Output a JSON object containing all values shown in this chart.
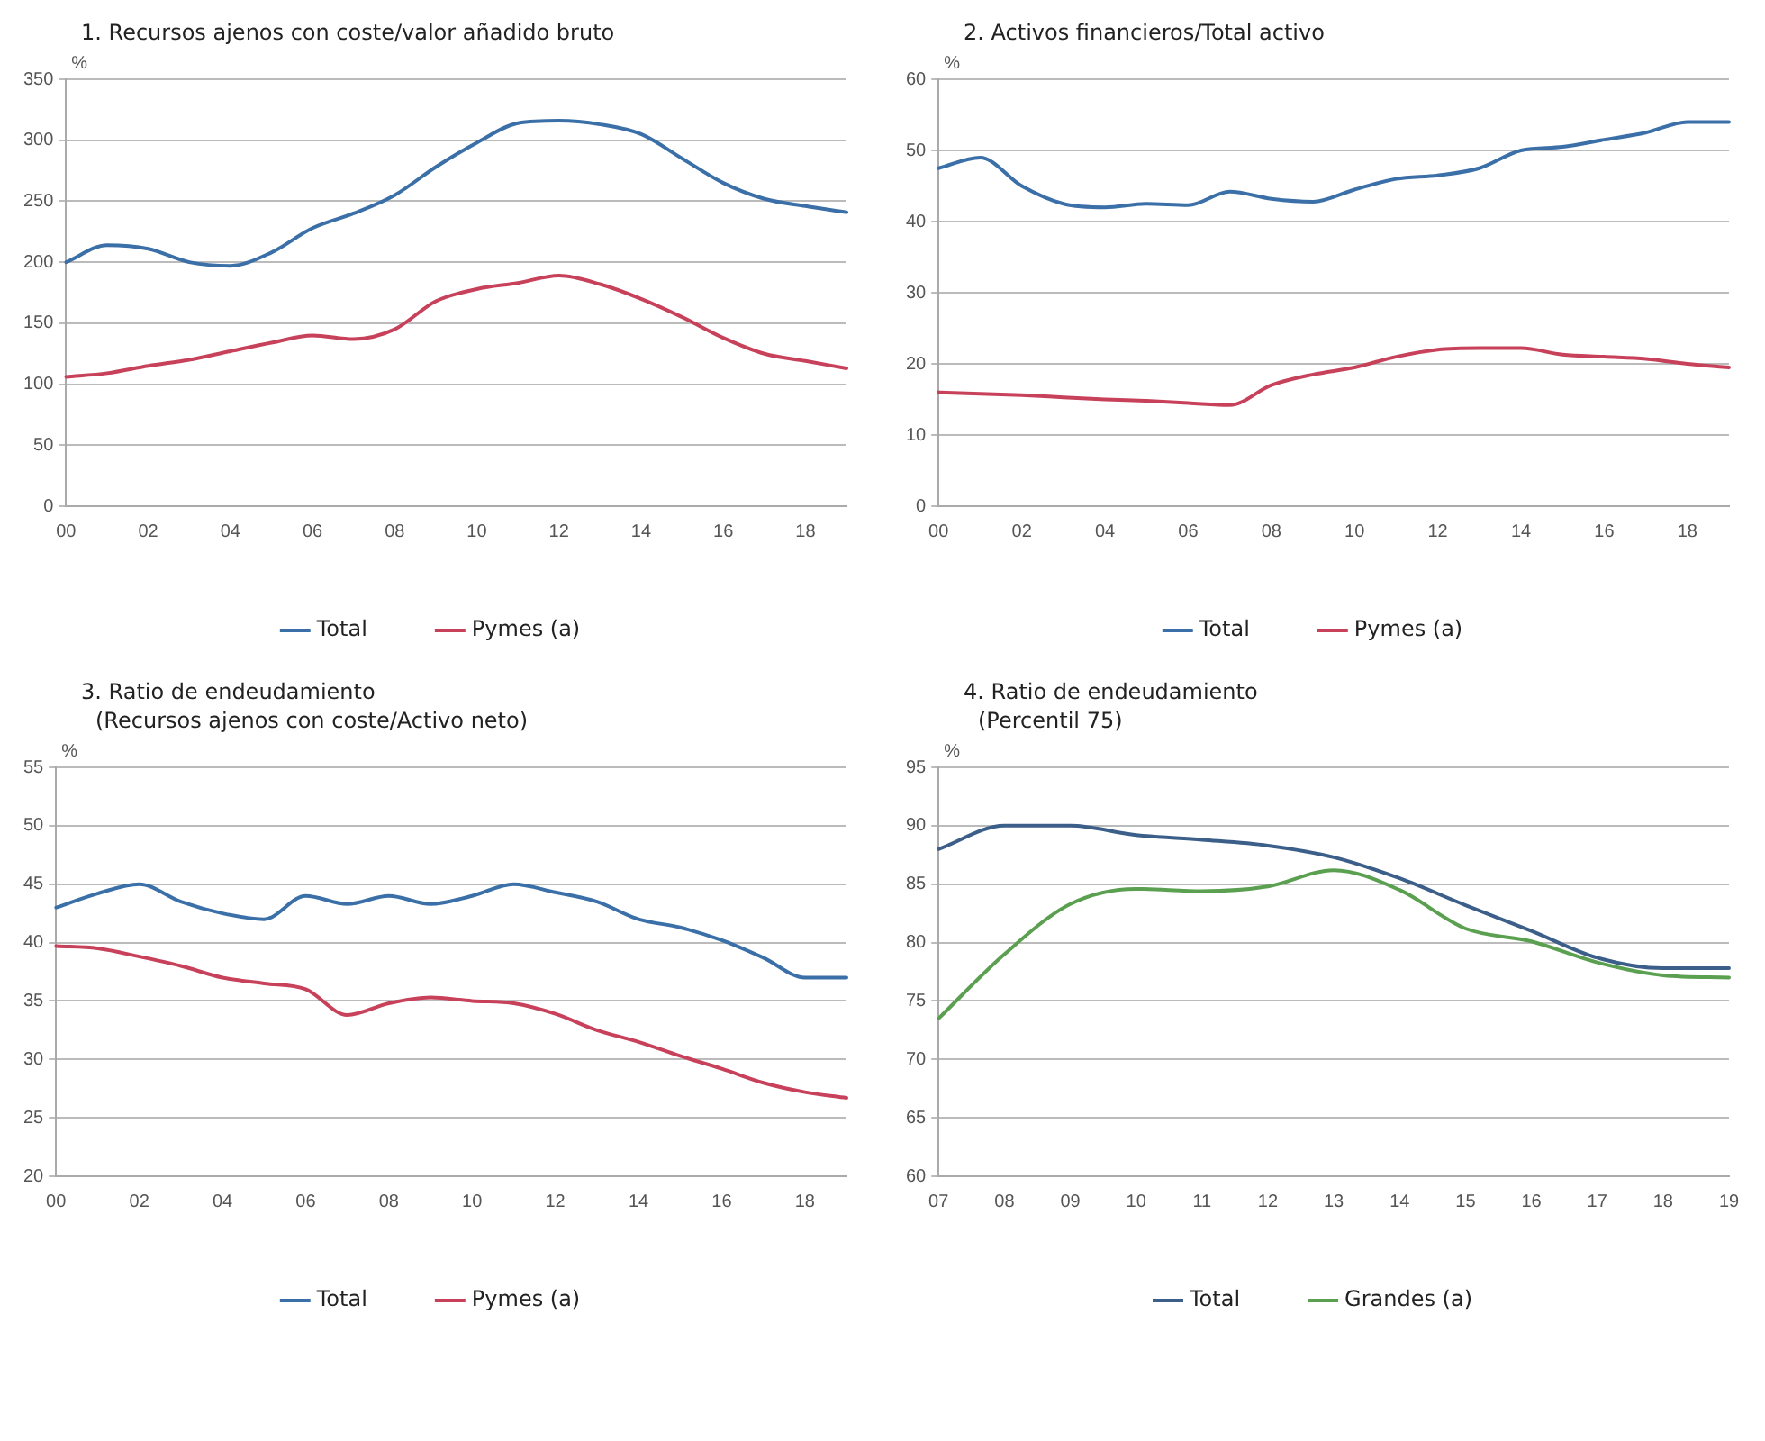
{
  "chart_data": [
    {
      "type": "line",
      "title": "1. Recursos ajenos con coste/valor añadido bruto",
      "ylabel": "%",
      "categories": [
        "00",
        null,
        "02",
        null,
        "04",
        null,
        "06",
        null,
        "08",
        null,
        "10",
        null,
        "12",
        null,
        "14",
        null,
        "16",
        null,
        "18",
        null
      ],
      "ylim": [
        0,
        350
      ],
      "yticks": [
        0,
        50,
        100,
        150,
        200,
        250,
        300,
        350
      ],
      "grid": "y",
      "legend": "bottom",
      "marker": "none",
      "line_style": "solid",
      "series": [
        {
          "name": "Total",
          "color": "#3a6fa8",
          "values": [
            200,
            214,
            211,
            200,
            197,
            208,
            228,
            240,
            255,
            278,
            298,
            314,
            316,
            313,
            305,
            285,
            265,
            252,
            246,
            241
          ]
        },
        {
          "name": "Pymes (a)",
          "color": "#c8415a",
          "values": [
            106,
            109,
            115,
            120,
            127,
            134,
            140,
            137,
            145,
            168,
            178,
            183,
            189,
            182,
            170,
            155,
            138,
            125,
            119,
            113
          ]
        }
      ]
    },
    {
      "type": "line",
      "title": "2. Activos financieros/Total activo",
      "ylabel": "%",
      "categories": [
        "00",
        null,
        "02",
        null,
        "04",
        null,
        "06",
        null,
        "08",
        null,
        "10",
        null,
        "12",
        null,
        "14",
        null,
        "16",
        null,
        "18",
        null
      ],
      "ylim": [
        0,
        60
      ],
      "yticks": [
        0,
        10,
        20,
        30,
        40,
        50,
        60
      ],
      "grid": "y",
      "legend": "bottom",
      "marker": "none",
      "line_style": "solid",
      "series": [
        {
          "name": "Total",
          "color": "#3a6fa8",
          "values": [
            47.5,
            49,
            45,
            42.5,
            42,
            42.5,
            42.3,
            44.2,
            43.2,
            42.8,
            44.5,
            46,
            46.5,
            47.5,
            50,
            50.5,
            51.5,
            52.5,
            54,
            54
          ]
        },
        {
          "name": "Pymes (a)",
          "color": "#c8415a",
          "values": [
            16,
            15.8,
            15.6,
            15.3,
            15,
            14.8,
            14.5,
            14.2,
            17,
            18.5,
            19.5,
            21,
            22,
            22.2,
            22.2,
            21.3,
            21,
            20.7,
            20,
            19.5
          ]
        }
      ]
    },
    {
      "type": "line",
      "title": "3. Ratio de endeudamiento",
      "subtitle": "(Recursos ajenos con coste/Activo neto)",
      "ylabel": "%",
      "categories": [
        "00",
        null,
        "02",
        null,
        "04",
        null,
        "06",
        null,
        "08",
        null,
        "10",
        null,
        "12",
        null,
        "14",
        null,
        "16",
        null,
        "18",
        null
      ],
      "ylim": [
        20,
        55
      ],
      "yticks": [
        20,
        25,
        30,
        35,
        40,
        45,
        50,
        55
      ],
      "grid": "y",
      "legend": "bottom",
      "marker": "none",
      "line_style": "solid",
      "series": [
        {
          "name": "Total",
          "color": "#3a6fa8",
          "values": [
            43,
            44.2,
            45,
            43.5,
            42.5,
            42,
            44,
            43.3,
            44,
            43.3,
            44,
            45,
            44.3,
            43.5,
            42,
            41.3,
            40.2,
            38.7,
            37,
            37
          ]
        },
        {
          "name": "Pymes (a)",
          "color": "#c8415a",
          "values": [
            39.7,
            39.5,
            38.8,
            38,
            37,
            36.5,
            36,
            33.8,
            34.8,
            35.3,
            35,
            34.8,
            33.9,
            32.5,
            31.5,
            30.3,
            29.2,
            28,
            27.2,
            26.7
          ]
        }
      ]
    },
    {
      "type": "line",
      "title": "4. Ratio de endeudamiento",
      "subtitle": "(Percentil 75)",
      "ylabel": "%",
      "categories": [
        "07",
        "08",
        "09",
        "10",
        "11",
        "12",
        "13",
        "14",
        "15",
        "16",
        "17",
        "18",
        "19"
      ],
      "ylim": [
        60,
        95
      ],
      "yticks": [
        60,
        65,
        70,
        75,
        80,
        85,
        90,
        95
      ],
      "grid": "y",
      "legend": "bottom",
      "marker": "none",
      "line_style": "solid",
      "series": [
        {
          "name": "Total",
          "color": "#3c5f8a",
          "values": [
            88,
            90,
            90,
            89.2,
            88.8,
            88.3,
            87.3,
            85.5,
            83.2,
            81,
            78.7,
            77.8,
            77.8
          ]
        },
        {
          "name": "Grandes (a)",
          "color": "#5aa050",
          "values": [
            73.5,
            79,
            83.3,
            84.6,
            84.4,
            84.8,
            86.2,
            84.5,
            81.2,
            80.1,
            78.3,
            77.2,
            77
          ]
        }
      ]
    }
  ]
}
